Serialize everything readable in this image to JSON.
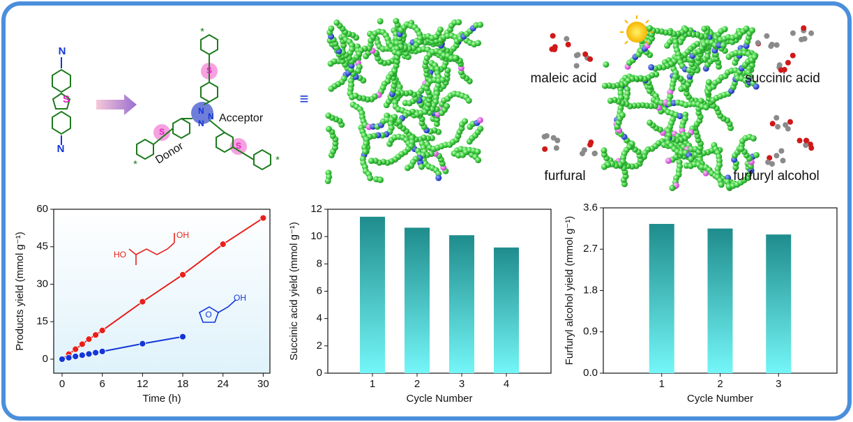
{
  "scheme": {
    "monomer_atoms": [
      "N",
      "S",
      "N"
    ],
    "framework_atoms": [
      "N",
      "N",
      "N",
      "S",
      "S",
      "S"
    ],
    "end_marks": [
      "*",
      "*",
      "*"
    ],
    "acceptor": "Acceptor",
    "donor": "Donor",
    "equivalence": "≡",
    "reactants": [
      "maleic acid",
      "furfural"
    ],
    "products": [
      "succinic acid",
      "furfuryl alcohol"
    ]
  },
  "chart_data": [
    {
      "type": "line",
      "x_label": "Time (h)",
      "y_label": "Products yield (mmol g⁻¹)",
      "xlim": [
        -1.25,
        31
      ],
      "xticks": [
        0,
        6,
        12,
        18,
        24,
        30
      ],
      "ylim": [
        -5.6,
        60
      ],
      "yticks": [
        0,
        15,
        30,
        45,
        60
      ],
      "annotations": [
        "HO",
        "OH",
        "O",
        "OH"
      ],
      "series": [
        {
          "color": "#e8201c",
          "x": [
            0,
            1,
            2,
            3,
            4,
            5,
            6,
            12,
            18,
            24,
            30
          ],
          "values": [
            0,
            2,
            4,
            6,
            8,
            9.7,
            11.5,
            23,
            33.8,
            46,
            56.5
          ]
        },
        {
          "color": "#1236d8",
          "x": [
            0,
            1,
            2,
            3,
            4,
            5,
            6,
            12,
            18
          ],
          "values": [
            0,
            0.6,
            1.1,
            1.6,
            2.1,
            2.6,
            3.1,
            6.2,
            9
          ]
        }
      ]
    },
    {
      "type": "bar",
      "x_label": "Cycle Number",
      "y_label": "Succinic acid yield (mmol g⁻¹)",
      "categories": [
        "1",
        "2",
        "3",
        "4"
      ],
      "values": [
        11.45,
        10.65,
        10.1,
        9.2
      ],
      "color": "#1f8c8c",
      "color_bottom": "#74f6f8",
      "ylim": [
        0,
        12
      ],
      "yticks": [
        0,
        2,
        4,
        6,
        8,
        10,
        12
      ]
    },
    {
      "type": "bar",
      "x_label": "Cycle Number",
      "y_label": "Furfuryl alcohol yield (mmol g⁻¹)",
      "categories": [
        "1",
        "2",
        "3"
      ],
      "values": [
        3.25,
        3.15,
        3.02
      ],
      "color": "#1f8c8c",
      "color_bottom": "#74f6f8",
      "ylim": [
        0,
        3.6
      ],
      "yticks": [
        {
          "value": 0,
          "label": "0.0"
        },
        0.9,
        1.8,
        2.7,
        3.6
      ]
    }
  ]
}
